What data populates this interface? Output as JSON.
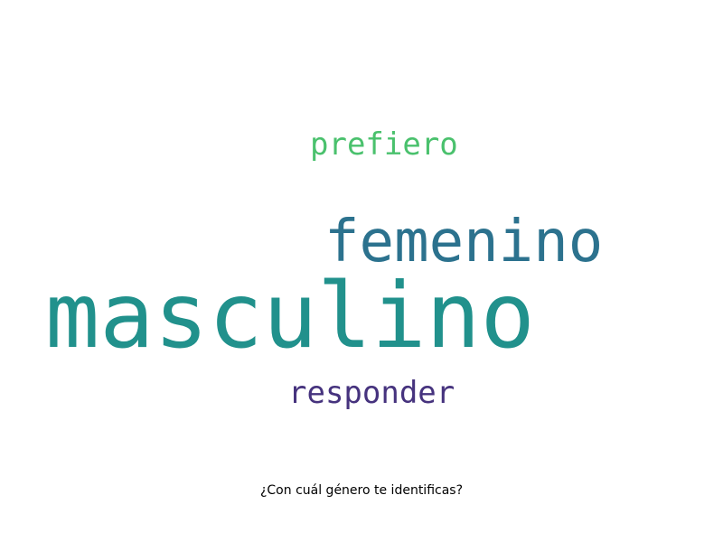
{
  "words": [
    {
      "text": "masculino",
      "color": "#21918c"
    },
    {
      "text": "femenino",
      "color": "#2c728e"
    },
    {
      "text": "prefiero",
      "color": "#4ac16d"
    },
    {
      "text": "responder",
      "color": "#46337e"
    }
  ],
  "caption": "¿Con cuál género te identificas?"
}
